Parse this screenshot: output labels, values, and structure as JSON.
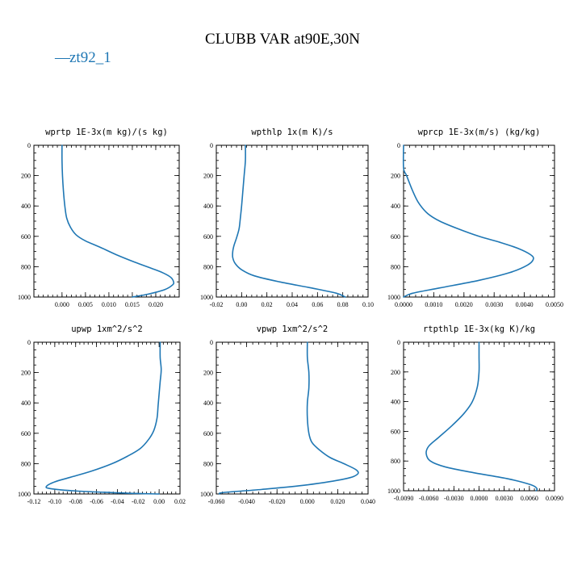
{
  "figure": {
    "title": "CLUBB VAR at90E,30N",
    "legend": [
      {
        "label": "zt92_1",
        "marker": "—",
        "color": "#1f77b4"
      }
    ]
  },
  "chart_data": [
    {
      "type": "line",
      "title": "wprtp  1E-3x(m kg)/(s kg)",
      "xlim": [
        -0.006,
        0.025
      ],
      "xticks": [
        0.0,
        0.005,
        0.01,
        0.015,
        0.02
      ],
      "xtick_labels": [
        "0.000",
        "0.005",
        "0.010",
        "0.015",
        "0.020"
      ],
      "ylim": [
        0,
        1000
      ],
      "yticks": [
        0,
        200,
        400,
        600,
        800,
        1000
      ],
      "y_inverted": true,
      "grid": false,
      "series": [
        {
          "name": "zt92_1",
          "color": "#1f77b4",
          "x": [
            0.0,
            0.0,
            0.0001,
            0.0003,
            0.0006,
            0.001,
            0.0018,
            0.003,
            0.005,
            0.008,
            0.0115,
            0.0155,
            0.019,
            0.0215,
            0.0232,
            0.0238,
            0.0236,
            0.022,
            0.0185,
            0.015
          ],
          "y": [
            0,
            100,
            200,
            300,
            400,
            480,
            540,
            590,
            630,
            670,
            720,
            770,
            810,
            840,
            870,
            900,
            920,
            950,
            980,
            1000
          ]
        }
      ]
    },
    {
      "type": "line",
      "title": "wpthlp  1x(m K)/s",
      "xlim": [
        -0.02,
        0.1
      ],
      "xticks": [
        -0.02,
        0.0,
        0.02,
        0.04,
        0.06,
        0.08,
        0.1
      ],
      "xtick_labels": [
        "-0.02",
        "0.00",
        "0.02",
        "0.04",
        "0.06",
        "0.08",
        "0.10"
      ],
      "ylim": [
        0,
        1000
      ],
      "yticks": [
        0,
        200,
        400,
        600,
        800,
        1000
      ],
      "y_inverted": true,
      "grid": false,
      "series": [
        {
          "name": "zt92_1",
          "color": "#1f77b4",
          "x": [
            0.003,
            0.003,
            0.002,
            0.001,
            0.0,
            -0.001,
            -0.002,
            -0.004,
            -0.006,
            -0.007,
            -0.007,
            -0.005,
            0.0,
            0.01,
            0.03,
            0.055,
            0.075,
            0.082
          ],
          "y": [
            0,
            100,
            200,
            300,
            400,
            480,
            550,
            610,
            660,
            700,
            740,
            780,
            820,
            860,
            900,
            940,
            975,
            1000
          ]
        }
      ]
    },
    {
      "type": "line",
      "title": "wprcp  1E-3x(m/s) (kg/kg)",
      "xlim": [
        0.0,
        0.005
      ],
      "xticks": [
        0.0,
        0.001,
        0.002,
        0.003,
        0.004,
        0.005
      ],
      "xtick_labels": [
        "0.0000",
        "0.0010",
        "0.0020",
        "0.0030",
        "0.0040",
        "0.0050"
      ],
      "ylim": [
        0,
        1000
      ],
      "yticks": [
        0,
        200,
        400,
        600,
        800,
        1000
      ],
      "y_inverted": true,
      "grid": false,
      "series": [
        {
          "name": "zt92_1",
          "color": "#1f77b4",
          "x": [
            0.0,
            0.0,
            0.0001,
            0.0003,
            0.0005,
            0.0008,
            0.0012,
            0.0018,
            0.0025,
            0.0032,
            0.0038,
            0.0042,
            0.0043,
            0.0041,
            0.0035,
            0.0025,
            0.0012,
            0.0003,
            0.0
          ],
          "y": [
            0,
            150,
            200,
            300,
            380,
            450,
            500,
            550,
            600,
            640,
            680,
            720,
            750,
            790,
            840,
            890,
            940,
            975,
            1000
          ]
        }
      ]
    },
    {
      "type": "line",
      "title": "upwp  1xm^2/s^2",
      "xlim": [
        -0.12,
        0.02
      ],
      "xticks": [
        -0.12,
        -0.1,
        -0.08,
        -0.06,
        -0.04,
        -0.02,
        0.0,
        0.02
      ],
      "xtick_labels": [
        "-0.12",
        "-0.10",
        "-0.08",
        "-0.06",
        "-0.04",
        "-0.02",
        "0.00",
        "0.02"
      ],
      "ylim": [
        0,
        1000
      ],
      "yticks": [
        0,
        200,
        400,
        600,
        800,
        1000
      ],
      "y_inverted": true,
      "grid": false,
      "series": [
        {
          "name": "zt92_1",
          "color": "#1f77b4",
          "x": [
            0.001,
            0.001,
            0.002,
            0.001,
            0.0,
            -0.001,
            -0.002,
            -0.005,
            -0.01,
            -0.018,
            -0.03,
            -0.045,
            -0.065,
            -0.085,
            -0.1,
            -0.108,
            -0.104,
            -0.08,
            -0.03,
            0.0
          ],
          "y": [
            0,
            100,
            180,
            260,
            340,
            420,
            500,
            580,
            640,
            700,
            750,
            800,
            850,
            890,
            920,
            950,
            965,
            980,
            995,
            1000
          ]
        }
      ]
    },
    {
      "type": "line",
      "title": "vpwp  1xm^2/s^2",
      "xlim": [
        -0.06,
        0.04
      ],
      "xticks": [
        -0.06,
        -0.04,
        -0.02,
        0.0,
        0.02,
        0.04
      ],
      "xtick_labels": [
        "-0.060",
        "-0.040",
        "-0.020",
        "0.000",
        "0.020",
        "0.040"
      ],
      "ylim": [
        0,
        1000
      ],
      "yticks": [
        0,
        200,
        400,
        600,
        800,
        1000
      ],
      "y_inverted": true,
      "grid": false,
      "series": [
        {
          "name": "zt92_1",
          "color": "#1f77b4",
          "x": [
            0.0,
            0.0,
            0.001,
            0.001,
            0.0,
            0.0,
            0.001,
            0.003,
            0.008,
            0.015,
            0.024,
            0.032,
            0.033,
            0.025,
            0.0,
            -0.03,
            -0.055,
            -0.058
          ],
          "y": [
            0,
            100,
            200,
            300,
            400,
            500,
            600,
            660,
            710,
            760,
            800,
            840,
            870,
            900,
            940,
            970,
            990,
            1000
          ]
        }
      ]
    },
    {
      "type": "line",
      "title": "rtpthlp  1E-3x(kg K)/kg",
      "xlim": [
        -0.009,
        0.009
      ],
      "xticks": [
        -0.009,
        -0.006,
        -0.003,
        0.0,
        0.003,
        0.006,
        0.009
      ],
      "xtick_labels": [
        "-0.0090",
        "-0.0060",
        "-0.0030",
        "0.0000",
        "0.0030",
        "0.0060",
        "0.0090"
      ],
      "ylim": [
        0,
        1000
      ],
      "yticks": [
        0,
        200,
        400,
        600,
        800,
        1000
      ],
      "y_inverted": true,
      "grid": false,
      "series": [
        {
          "name": "zt92_1",
          "color": "#1f77b4",
          "x": [
            0.0,
            0.0,
            0.0,
            -0.0002,
            -0.0008,
            -0.0018,
            -0.0032,
            -0.0048,
            -0.006,
            -0.0063,
            -0.0058,
            -0.004,
            -0.0005,
            0.0035,
            0.0062,
            0.0069,
            0.0068
          ],
          "y": [
            0,
            100,
            200,
            300,
            400,
            480,
            560,
            640,
            700,
            750,
            800,
            840,
            880,
            920,
            960,
            985,
            1000
          ]
        }
      ]
    }
  ]
}
